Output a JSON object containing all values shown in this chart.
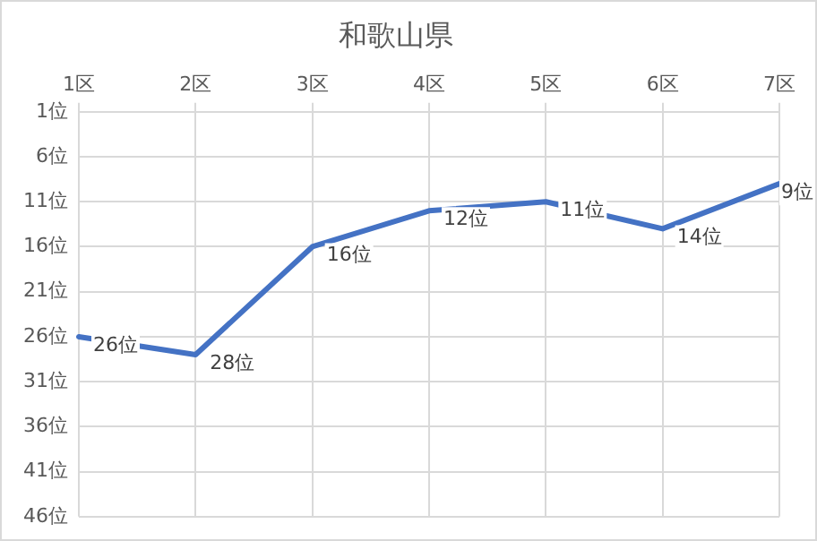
{
  "chart_data": {
    "type": "line",
    "title": "和歌山県",
    "categories": [
      "1区",
      "2区",
      "3区",
      "4区",
      "5区",
      "6区",
      "7区"
    ],
    "series": [
      {
        "color": "#4472c4",
        "values": [
          26,
          28,
          16,
          12,
          11,
          14,
          9
        ],
        "value_labels": [
          "26位",
          "28位",
          "16位",
          "12位",
          "11位",
          "14位",
          "9位"
        ]
      }
    ],
    "ylim": [
      46,
      1
    ],
    "yticks": [
      {
        "value": 1,
        "label": "1位"
      },
      {
        "value": 6,
        "label": "6位"
      },
      {
        "value": 11,
        "label": "11位"
      },
      {
        "value": 16,
        "label": "16位"
      },
      {
        "value": 21,
        "label": "21位"
      },
      {
        "value": 26,
        "label": "26位"
      },
      {
        "value": 31,
        "label": "31位"
      },
      {
        "value": 36,
        "label": "36位"
      },
      {
        "value": 41,
        "label": "41位"
      },
      {
        "value": 46,
        "label": "46位"
      }
    ],
    "grid": true,
    "legend": false,
    "marker": "none",
    "line_style": "solid"
  }
}
